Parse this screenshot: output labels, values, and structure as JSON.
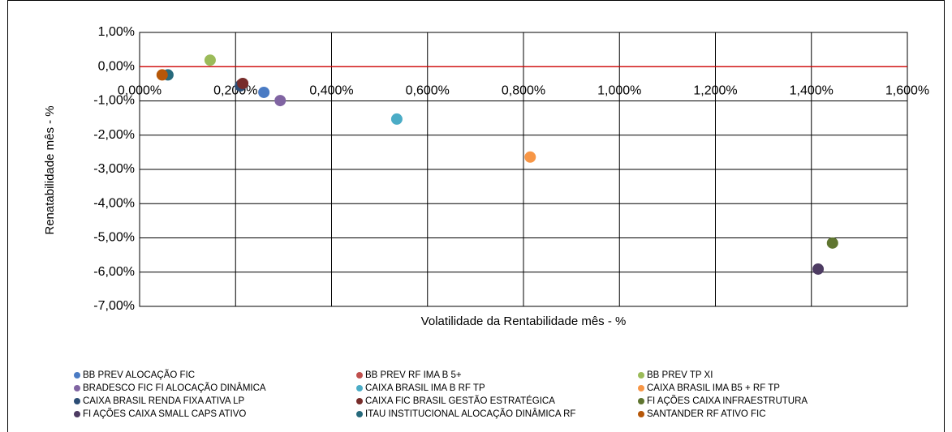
{
  "chart_data": {
    "type": "scatter",
    "x_label": "Volatilidade da Rentabilidade mês - %",
    "y_label": "Renatabilidade mês - %",
    "xlim": [
      0,
      1.6
    ],
    "xticks": [
      {
        "value": 0,
        "label": "0,000%"
      },
      {
        "value": 0.2,
        "label": "0,200%"
      },
      {
        "value": 0.4,
        "label": "0,400%"
      },
      {
        "value": 0.6,
        "label": "0,600%"
      },
      {
        "value": 0.8,
        "label": "0,800%"
      },
      {
        "value": 1.0,
        "label": "1,000%"
      },
      {
        "value": 1.2,
        "label": "1,200%"
      },
      {
        "value": 1.4,
        "label": "1,400%"
      },
      {
        "value": 1.6,
        "label": "1,600%"
      }
    ],
    "ylim": [
      -7,
      1
    ],
    "yticks": [
      {
        "value": 1,
        "label": "1,00%"
      },
      {
        "value": 0,
        "label": "0,00%"
      },
      {
        "value": -1,
        "label": "-1,00%"
      },
      {
        "value": -2,
        "label": "-2,00%"
      },
      {
        "value": -3,
        "label": "-3,00%"
      },
      {
        "value": -4,
        "label": "-4,00%"
      },
      {
        "value": -5,
        "label": "-5,00%"
      },
      {
        "value": -6,
        "label": "-6,00%"
      },
      {
        "value": -7,
        "label": "-7,00%"
      }
    ],
    "grid": true,
    "series": [
      {
        "name": "BB PREV ALOCAÇÃO FIC",
        "color": "#4a7bc4",
        "x": [
          0.259
        ],
        "values": [
          -0.75
        ]
      },
      {
        "name": "BB PREV RF IMA B 5+",
        "color": "#c0504d",
        "x": [
          0.212
        ],
        "values": [
          -0.52
        ]
      },
      {
        "name": "BB PREV TP XI",
        "color": "#9bbb59",
        "x": [
          0.147
        ],
        "values": [
          0.19
        ]
      },
      {
        "name": "BRADESCO FIC FI ALOCAÇÃO DINÂMICA",
        "color": "#8064a2",
        "x": [
          0.293
        ],
        "values": [
          -0.99
        ]
      },
      {
        "name": "CAIXA BRASIL IMA B RF TP",
        "color": "#4bacc6",
        "x": [
          0.536
        ],
        "values": [
          -1.53
        ]
      },
      {
        "name": "CAIXA BRASIL IMA B5 + RF TP",
        "color": "#f79646",
        "x": [
          0.814
        ],
        "values": [
          -2.64
        ]
      },
      {
        "name": "CAIXA BRASIL RENDA FIXA ATIVA LP",
        "color": "#2c4d75",
        "x": [
          0.21
        ],
        "values": [
          -0.56
        ]
      },
      {
        "name": "CAIXA FIC BRASIL GESTÃO ESTRATÉGICA",
        "color": "#772c2a",
        "x": [
          0.215
        ],
        "values": [
          -0.49
        ]
      },
      {
        "name": "FI AÇÕES CAIXA INFRAESTRUTURA",
        "color": "#5f7530",
        "x": [
          1.444
        ],
        "values": [
          -5.15
        ]
      },
      {
        "name": "FI AÇÕES CAIXA SMALL CAPS ATIVO",
        "color": "#4d3b62",
        "x": [
          1.414
        ],
        "values": [
          -5.91
        ]
      },
      {
        "name": "ITAU INSTITUCIONAL ALOCAÇÃO DINÂMICA RF",
        "color": "#276a7c",
        "x": [
          0.059
        ],
        "values": [
          -0.24
        ]
      },
      {
        "name": "SANTANDER RF ATIVO FIC",
        "color": "#b65708",
        "x": [
          0.047
        ],
        "values": [
          -0.24
        ]
      }
    ]
  }
}
